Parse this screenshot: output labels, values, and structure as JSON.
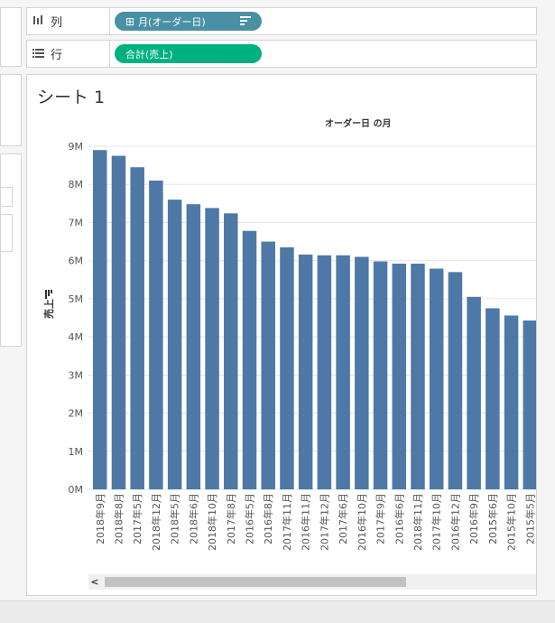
{
  "shelves": {
    "columns": {
      "label": "列",
      "icon": "columns-icon",
      "pill": "月(オーダー日)",
      "pill_icon": "plus-box-icon",
      "pill_color": "#4a90a4"
    },
    "rows": {
      "label": "行",
      "icon": "rows-icon",
      "pill": "合計(売上)",
      "pill_color": "#00b180"
    }
  },
  "sheet": {
    "title": "シート 1"
  },
  "colors": {
    "bar": "#4e79a7",
    "grid": "#e6e6e6"
  },
  "chart_data": {
    "type": "bar",
    "title": "オーダー日 の月",
    "xlabel": "",
    "ylabel": "売上",
    "ylim": [
      0,
      9000000
    ],
    "yticks": [
      {
        "value": 0,
        "label": "0M"
      },
      {
        "value": 1000000,
        "label": "1M"
      },
      {
        "value": 2000000,
        "label": "2M"
      },
      {
        "value": 3000000,
        "label": "3M"
      },
      {
        "value": 4000000,
        "label": "4M"
      },
      {
        "value": 5000000,
        "label": "5M"
      },
      {
        "value": 6000000,
        "label": "6M"
      },
      {
        "value": 7000000,
        "label": "7M"
      },
      {
        "value": 8000000,
        "label": "8M"
      },
      {
        "value": 9000000,
        "label": "9M"
      }
    ],
    "categories": [
      "2018年9月",
      "2018年8月",
      "2017年5月",
      "2018年12月",
      "2018年5月",
      "2018年6月",
      "2018年10月",
      "2017年8月",
      "2016年5月",
      "2016年8月",
      "2017年11月",
      "2016年11月",
      "2017年12月",
      "2017年6月",
      "2016年10月",
      "2017年9月",
      "2016年6月",
      "2018年11月",
      "2017年10月",
      "2016年12月",
      "2016年9月",
      "2015年6月",
      "2015年10月",
      "2015年5月"
    ],
    "values": [
      8900000,
      8750000,
      8450000,
      8100000,
      7600000,
      7480000,
      7380000,
      7240000,
      6780000,
      6500000,
      6350000,
      6160000,
      6140000,
      6140000,
      6100000,
      5980000,
      5920000,
      5920000,
      5790000,
      5700000,
      5050000,
      4750000,
      4560000,
      4430000
    ]
  },
  "scrollbar": {
    "left_arrow": "<"
  }
}
